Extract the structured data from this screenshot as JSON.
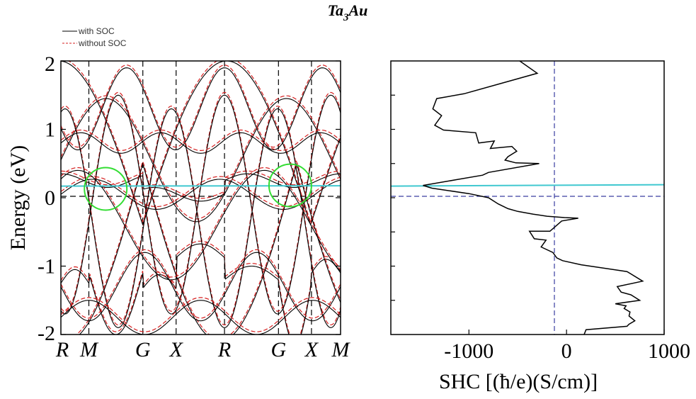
{
  "title": {
    "base": "Ta",
    "sub1": "3",
    "rest": "Au"
  },
  "legend": {
    "items": [
      {
        "label": "with SOC",
        "color": "#000000",
        "dash": "solid"
      },
      {
        "label": "without SOC",
        "color": "#d62020",
        "dash": "dashed"
      }
    ]
  },
  "chart_data": [
    {
      "type": "line",
      "name": "band-structure",
      "ylabel": "Energy (eV)",
      "ylim": [
        -2,
        2
      ],
      "yticks": [
        "2",
        "1",
        "0",
        "-1",
        "-2"
      ],
      "kpoints": [
        {
          "label": "R",
          "pos": 0.0
        },
        {
          "label": "M",
          "pos": 0.1
        },
        {
          "label": "G",
          "pos": 0.293
        },
        {
          "label": "X",
          "pos": 0.412
        },
        {
          "label": "R",
          "pos": 0.585
        },
        {
          "label": "G",
          "pos": 0.778
        },
        {
          "label": "X",
          "pos": 0.896
        },
        {
          "label": "M",
          "pos": 1.0
        }
      ],
      "fermi_level": 0,
      "reference_line": {
        "energy": 0.17,
        "color": "#40c8d0"
      },
      "highlights": [
        {
          "center_k": 0.16,
          "center_e": 0.13,
          "color": "#33dd33"
        },
        {
          "center_k": 0.82,
          "center_e": 0.18,
          "color": "#33dd33"
        }
      ],
      "series": [
        {
          "color": "#000000",
          "dash": "solid"
        },
        {
          "color": "#d62020",
          "dash": "dashed"
        }
      ]
    },
    {
      "type": "line",
      "name": "spin-hall-conductivity",
      "xlabel": "SHC [(ħ/e)(S/cm)]",
      "xlim": [
        -1800,
        1000
      ],
      "ylim": [
        -2,
        2
      ],
      "xticks": [
        "-1000",
        "0",
        "1000"
      ],
      "xtick_values": [
        -1000,
        0,
        1000
      ],
      "yminor_ticks": [
        1.5,
        1.0,
        0.5,
        0.0,
        -0.5,
        -1.0,
        -1.5
      ],
      "reference_line": {
        "energy": 0.17,
        "color": "#40c8d0"
      },
      "series": [
        {
          "color": "#000000",
          "x": [
            -480,
            -300,
            -1050,
            -1330,
            -1370,
            -1280,
            -1350,
            -1260,
            -930,
            -900,
            -740,
            -780,
            -560,
            -510,
            -600,
            -630,
            -520,
            -280,
            -800,
            -860,
            -1470,
            -1380,
            -1000,
            -800,
            -700,
            -600,
            -500,
            -340,
            -200,
            -20,
            120,
            -50,
            -170,
            -380,
            -330,
            -210,
            -260,
            -140,
            -100,
            -40,
            150,
            620,
            780,
            520,
            560,
            660,
            750,
            500,
            610,
            590,
            650,
            640,
            700,
            640,
            620,
            200,
            180
          ],
          "y": [
            2.0,
            1.82,
            1.52,
            1.45,
            1.3,
            1.2,
            1.06,
            0.99,
            0.95,
            0.8,
            0.83,
            0.72,
            0.75,
            0.68,
            0.6,
            0.55,
            0.51,
            0.5,
            0.37,
            0.33,
            0.18,
            0.14,
            0.06,
            0.0,
            -0.09,
            -0.16,
            -0.2,
            -0.24,
            -0.27,
            -0.29,
            -0.3,
            -0.34,
            -0.49,
            -0.49,
            -0.6,
            -0.62,
            -0.72,
            -0.8,
            -0.88,
            -0.92,
            -0.98,
            -1.08,
            -1.22,
            -1.3,
            -1.38,
            -1.42,
            -1.5,
            -1.55,
            -1.58,
            -1.62,
            -1.67,
            -1.73,
            -1.8,
            -1.85,
            -1.88,
            -1.93,
            -2.0
          ]
        }
      ]
    }
  ]
}
